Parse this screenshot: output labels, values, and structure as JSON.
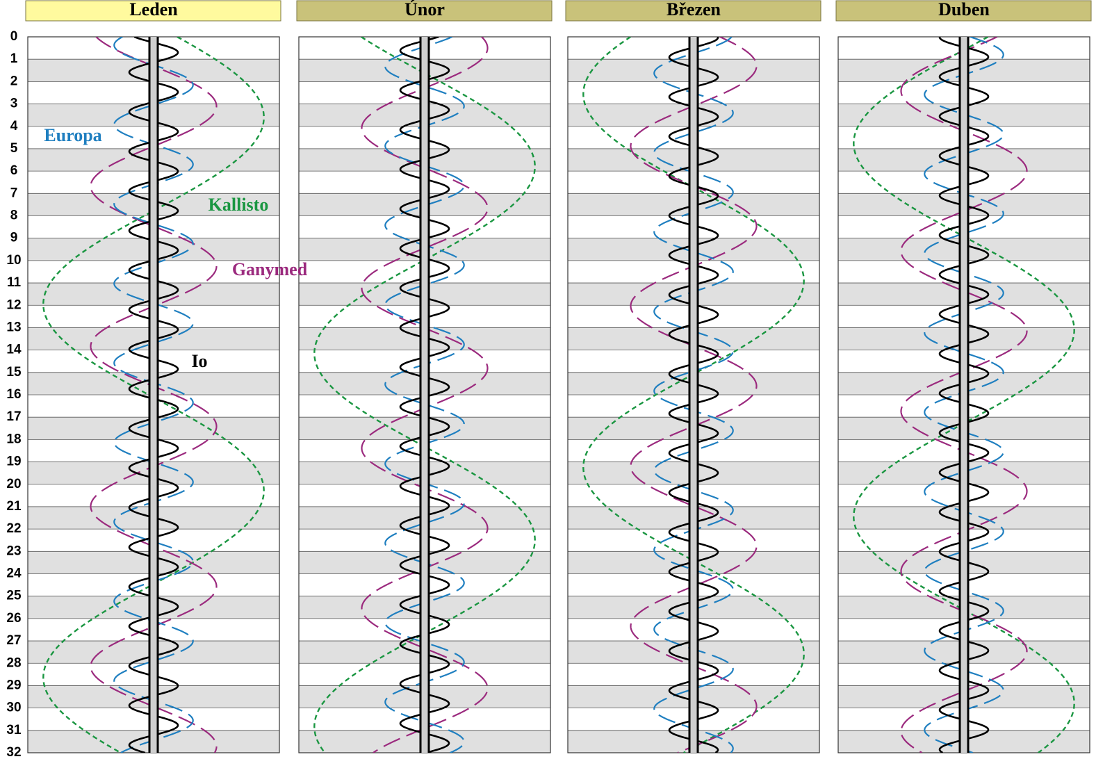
{
  "chart_data": {
    "type": "line",
    "xlim": [
      -30,
      30
    ],
    "ylim": [
      0,
      32
    ],
    "yticks": [
      0,
      1,
      2,
      3,
      4,
      5,
      6,
      7,
      8,
      9,
      10,
      11,
      12,
      13,
      14,
      15,
      16,
      17,
      18,
      19,
      20,
      21,
      22,
      23,
      24,
      25,
      26,
      27,
      28,
      29,
      30,
      31,
      32
    ],
    "grid": true,
    "series": [
      {
        "name": "Io",
        "color": "#000000",
        "amplitude": 5.8,
        "period": 1.769
      },
      {
        "name": "Europa",
        "color": "#1f7fc0",
        "amplitude": 9.4,
        "period": 3.551
      },
      {
        "name": "Ganymed",
        "color": "#9b2a7e",
        "amplitude": 15.0,
        "period": 7.155
      },
      {
        "name": "Kallisto",
        "color": "#1a9641",
        "amplitude": 26.3,
        "period": 16.689
      }
    ],
    "panels": [
      {
        "title": "Leden",
        "max_east": [
          0.7,
          2.15,
          3.1,
          3.6
        ]
      },
      {
        "title": "Únor",
        "max_east": [
          1.5,
          3.1,
          0.5,
          5.8
        ]
      },
      {
        "title": "Březen",
        "max_east": [
          1.8,
          3.4,
          1.3,
          10.9
        ]
      },
      {
        "title": "Duben",
        "max_east": [
          0.9,
          0.8,
          6.0,
          13.1
        ]
      }
    ]
  }
}
